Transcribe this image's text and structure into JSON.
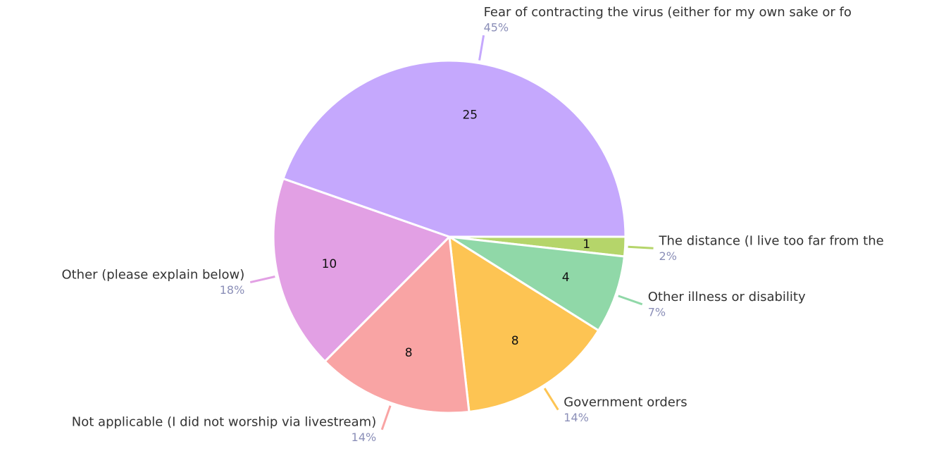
{
  "chart_data": {
    "type": "pie",
    "categories": [
      "The distance (I live too far from the",
      "Other illness or disability",
      "Government orders",
      "Not applicable (I did not worship via livestream)",
      "Other (please explain below)",
      "Fear of contracting the virus (either for my own sake or fo"
    ],
    "values": [
      1,
      4,
      8,
      8,
      10,
      25
    ],
    "percent_labels": [
      "2%",
      "7%",
      "14%",
      "14%",
      "18%",
      "45%"
    ],
    "colors": [
      "#b5d56a",
      "#90d8a8",
      "#fdc453",
      "#f9a4a4",
      "#e2a0e4",
      "#c5a8fd"
    ]
  }
}
